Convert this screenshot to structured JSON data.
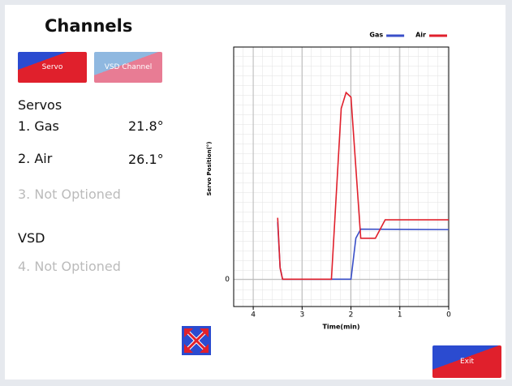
{
  "header": {
    "title": "Channels"
  },
  "buttons": {
    "servo": "Servo",
    "vsd": "VSD Channel",
    "exit": "Exit"
  },
  "servos": {
    "heading": "Servos",
    "items": [
      {
        "label": "1. Gas",
        "value": "21.8°"
      },
      {
        "label": "2. Air",
        "value": "26.1°"
      },
      {
        "label": "3. Not Optioned"
      }
    ]
  },
  "vsd": {
    "heading": "VSD",
    "items": [
      {
        "label": "4. Not Optioned"
      }
    ]
  },
  "chart_data": {
    "type": "line",
    "xlabel": "Time(min)",
    "ylabel": "Servo Position(°)",
    "xlim": [
      4.4,
      0
    ],
    "ylim": [
      -12,
      102
    ],
    "xticks": [
      4,
      3,
      2,
      1,
      0
    ],
    "yticks": [
      0
    ],
    "grid": true,
    "legend": "top-right",
    "series": [
      {
        "name": "Gas",
        "color": "#3a4fc8",
        "x": [
          3.5,
          3.45,
          3.4,
          2.0,
          1.9,
          1.8,
          0
        ],
        "values": [
          25,
          5,
          0,
          0,
          18,
          22,
          21.8
        ]
      },
      {
        "name": "Air",
        "color": "#e0202c",
        "x": [
          3.5,
          3.45,
          3.4,
          2.4,
          2.2,
          2.1,
          2.0,
          1.8,
          1.5,
          1.3,
          0
        ],
        "values": [
          27,
          5,
          0,
          0,
          75,
          82,
          80,
          18,
          18,
          26.1,
          26.1
        ]
      }
    ]
  }
}
